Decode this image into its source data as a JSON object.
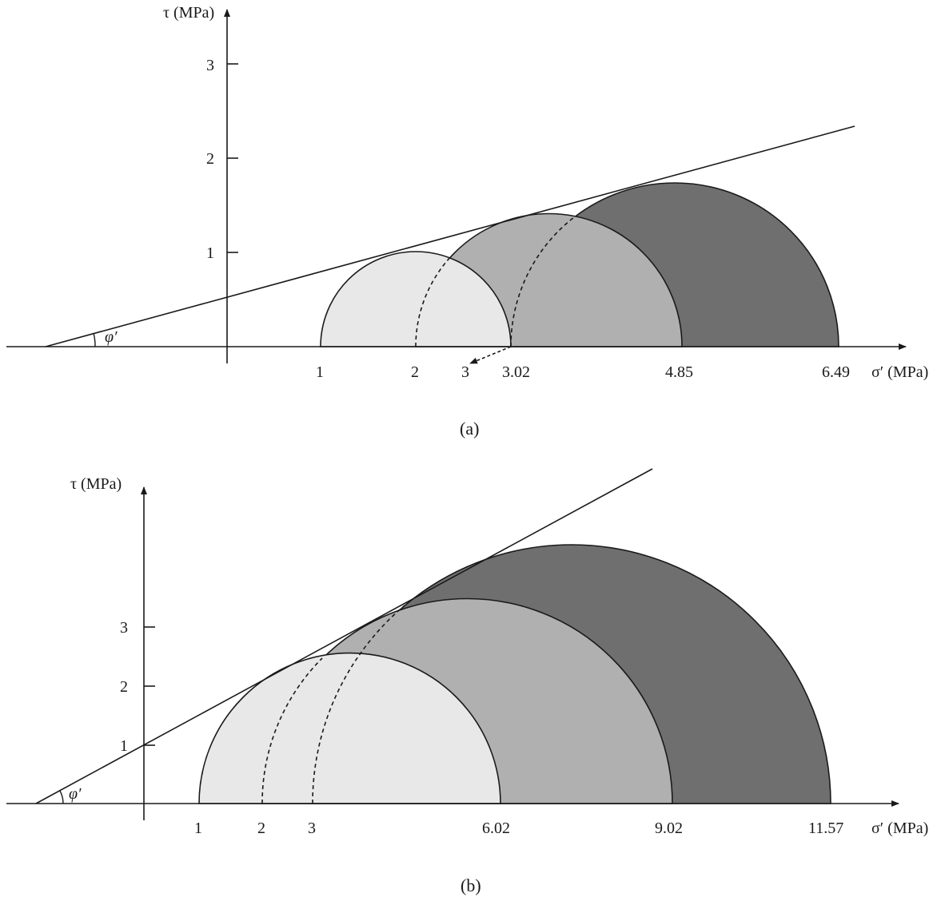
{
  "colors": {
    "circle_light": "#e8e8e8",
    "circle_mid": "#b0b0b0",
    "circle_dark": "#6f6f6f",
    "line": "#1a1a1a"
  },
  "panels": [
    {
      "caption": "(a)",
      "y_axis_label": "τ (MPa)",
      "x_axis_label": "σ′ (MPa)",
      "angle_label": "φ′",
      "y_ticks": [
        "1",
        "2",
        "3"
      ],
      "x_labels": [
        "1",
        "2",
        "3",
        "3.02",
        "4.85",
        "6.49"
      ]
    },
    {
      "caption": "(b)",
      "y_axis_label": "τ (MPa)",
      "x_axis_label": "σ′ (MPa)",
      "angle_label": "φ′",
      "y_ticks": [
        "1",
        "2",
        "3"
      ],
      "x_labels": [
        "1",
        "2",
        "3",
        "6.02",
        "9.02",
        "11.57"
      ]
    }
  ]
}
